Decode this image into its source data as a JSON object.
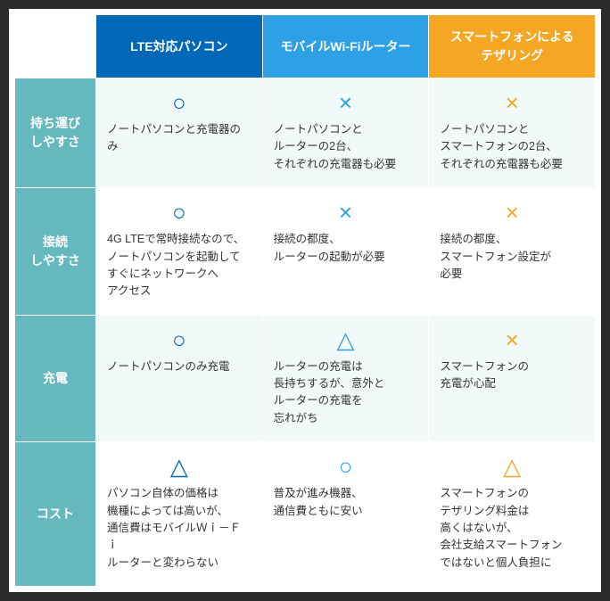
{
  "table": {
    "background": "#ffffff",
    "row_header_bg": "#66b8bf",
    "row_header_fg": "#ffffff",
    "cell_bg_alt_a": "#f1faf9",
    "cell_bg_alt_b": "#ffffff",
    "columns": [
      {
        "label": "LTE対応パソコン",
        "bg": "#0068b7",
        "mark_color": "#0068b7"
      },
      {
        "label": "モバイルWi-Fiルーター",
        "bg": "#2ea0e6",
        "mark_color": "#2ea0e6"
      },
      {
        "label": "スマートフォンによる\nテザリング",
        "bg": "#f5a623",
        "mark_color": "#f5a623"
      }
    ],
    "rows": [
      {
        "label": "持ち運び\nしやすさ",
        "cells": [
          {
            "mark": "○",
            "text": "ノートパソコンと充電器のみ"
          },
          {
            "mark": "×",
            "text": "ノートパソコンと\nルーターの2台、\nそれぞれの充電器も必要"
          },
          {
            "mark": "×",
            "text": "ノートパソコンと\nスマートフォンの2台、\nそれぞれの充電器も必要"
          }
        ]
      },
      {
        "label": "接続\nしやすさ",
        "cells": [
          {
            "mark": "○",
            "text": "4G LTEで常時接続なので、\nノートパソコンを起動して\nすぐにネットワークへ\nアクセス"
          },
          {
            "mark": "×",
            "text": "接続の都度、\nルーターの起動が必要"
          },
          {
            "mark": "×",
            "text": "接続の都度、\nスマートフォン設定が\n必要"
          }
        ]
      },
      {
        "label": "充電",
        "cells": [
          {
            "mark": "○",
            "text": "ノートパソコンのみ充電"
          },
          {
            "mark": "△",
            "text": "ルーターの充電は\n長持ちするが、意外と\nルーターの充電を\n忘れがち"
          },
          {
            "mark": "×",
            "text": "スマートフォンの\n充電が心配"
          }
        ]
      },
      {
        "label": "コスト",
        "cells": [
          {
            "mark": "△",
            "text": "パソコン自体の価格は\n機種によっては高いが、\n通信費はモバイルＷｉ－Ｆｉ\nルーターと変わらない"
          },
          {
            "mark": "○",
            "text": "普及が進み機器、\n通信費ともに安い"
          },
          {
            "mark": "△",
            "text": "スマートフォンの\nテザリング料金は\n高くはないが、\n会社支給スマートフォン\nではないと個人負担に"
          }
        ]
      }
    ]
  }
}
